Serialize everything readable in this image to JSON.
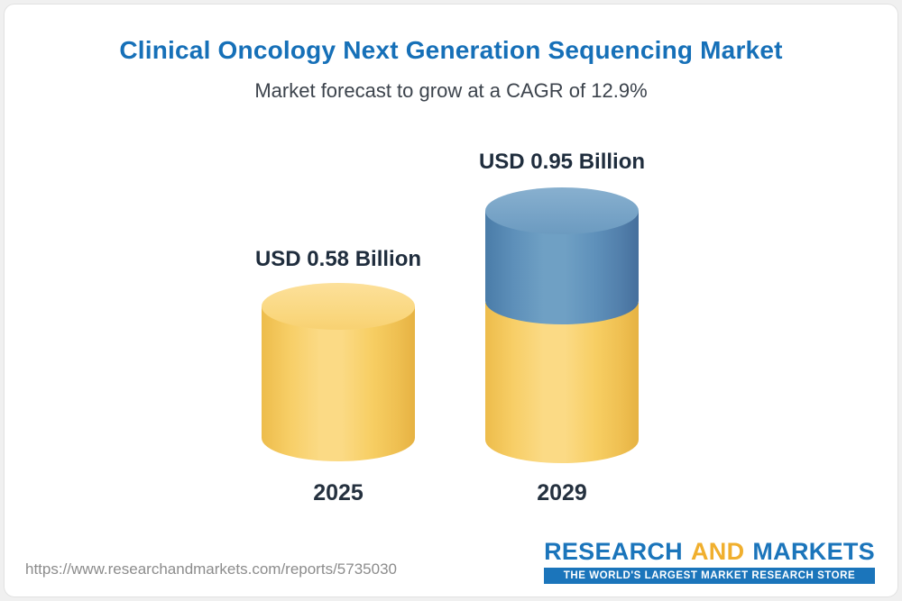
{
  "header": {
    "title": "Clinical Oncology Next Generation Sequencing Market",
    "subtitle": "Market forecast to grow at a CAGR of 12.9%"
  },
  "chart_data": {
    "type": "bar",
    "bar_style": "3d-cylinder",
    "categories": [
      "2025",
      "2029"
    ],
    "values": [
      0.58,
      0.95
    ],
    "value_labels": [
      "USD 0.58 Billion",
      "USD 0.95 Billion"
    ],
    "unit": "USD Billion",
    "cagr": "12.9%",
    "title": "Clinical Oncology Next Generation Sequencing Market",
    "subtitle": "Market forecast to grow at a CAGR of 12.9%",
    "xlabel": "",
    "ylabel": "",
    "legend": "none",
    "grid": false,
    "colors": {
      "bar_2025": "#F7CE63",
      "bar_2029_base": "#F7CE63",
      "bar_2029_growth": "#5E90BA",
      "title_text": "#1670B8",
      "label_text": "#1F2D3D"
    }
  },
  "footer": {
    "url": "https://www.researchandmarkets.com/reports/5735030",
    "logo": {
      "part1": "RESEARCH",
      "part2": "AND",
      "part3": "MARKETS",
      "tagline": "THE WORLD'S LARGEST MARKET RESEARCH STORE"
    }
  }
}
